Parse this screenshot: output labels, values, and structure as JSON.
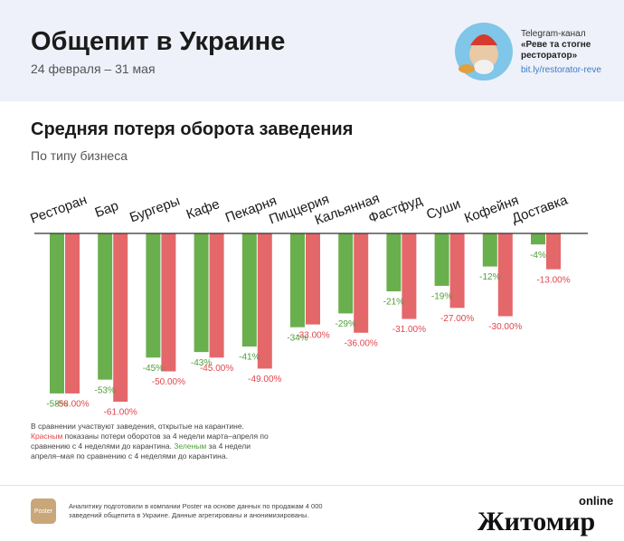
{
  "header": {
    "title": "Общепит в Украине",
    "subtitle": "24 февраля – 31 мая",
    "channel_label": "Telegram-канал",
    "channel_name": "«Реве та стогне ресторатор»",
    "channel_link": "bit.ly/restorator-reve"
  },
  "chart_data": {
    "type": "bar",
    "title": "Средняя потеря оборота заведения",
    "subtitle": "По типу бизнеса",
    "categories": [
      "Ресторан",
      "Бар",
      "Бургеры",
      "Кафе",
      "Пекарня",
      "Пиццерия",
      "Кальянная",
      "Фастфуд",
      "Суши",
      "Кофейня",
      "Доставка"
    ],
    "series": [
      {
        "color": "#6aaf4e",
        "label_color": "#4e9e3a",
        "values": [
          -58,
          -53,
          -45,
          -43,
          -41,
          -34,
          -29,
          -21,
          -19,
          -12,
          -4
        ],
        "value_labels": [
          "-58%",
          "-53%",
          "-45%",
          "-43%",
          "-41%",
          "-34%",
          "-29%",
          "-21%",
          "-19%",
          "-12%",
          "-4%"
        ]
      },
      {
        "color": "#e4676a",
        "label_color": "#e0474c",
        "values": [
          -58,
          -61,
          -50,
          -45,
          -49,
          -33,
          -36,
          -31,
          -27,
          -30,
          -13
        ],
        "value_labels": [
          "-58.00%",
          "-61.00%",
          "-50.00%",
          "-45.00%",
          "-49.00%",
          "-33.00%",
          "-36.00%",
          "-31.00%",
          "-27.00%",
          "-30.00%",
          "-13.00%"
        ]
      }
    ]
  },
  "note": {
    "line1": "В сравнении участвуют заведения, открытые на карантине.",
    "red_word": "Красным",
    "red_text": " показаны потери оборотов за 4 недели марта–апреля по сравнению с 4 неделями до карантина. ",
    "green_word": "Зеленым",
    "green_text": " за 4 недели апреля–мая по сравнению с 4 неделями до карантина."
  },
  "footer": {
    "logo": "Poster",
    "text": "Аналитику подготовили в компании Poster на основе данных по продажам 4 000 заведений общепита в Украине. Данные агрегированы и анонимизированы.",
    "watermark": "Житомир",
    "watermark_sub": "online"
  }
}
